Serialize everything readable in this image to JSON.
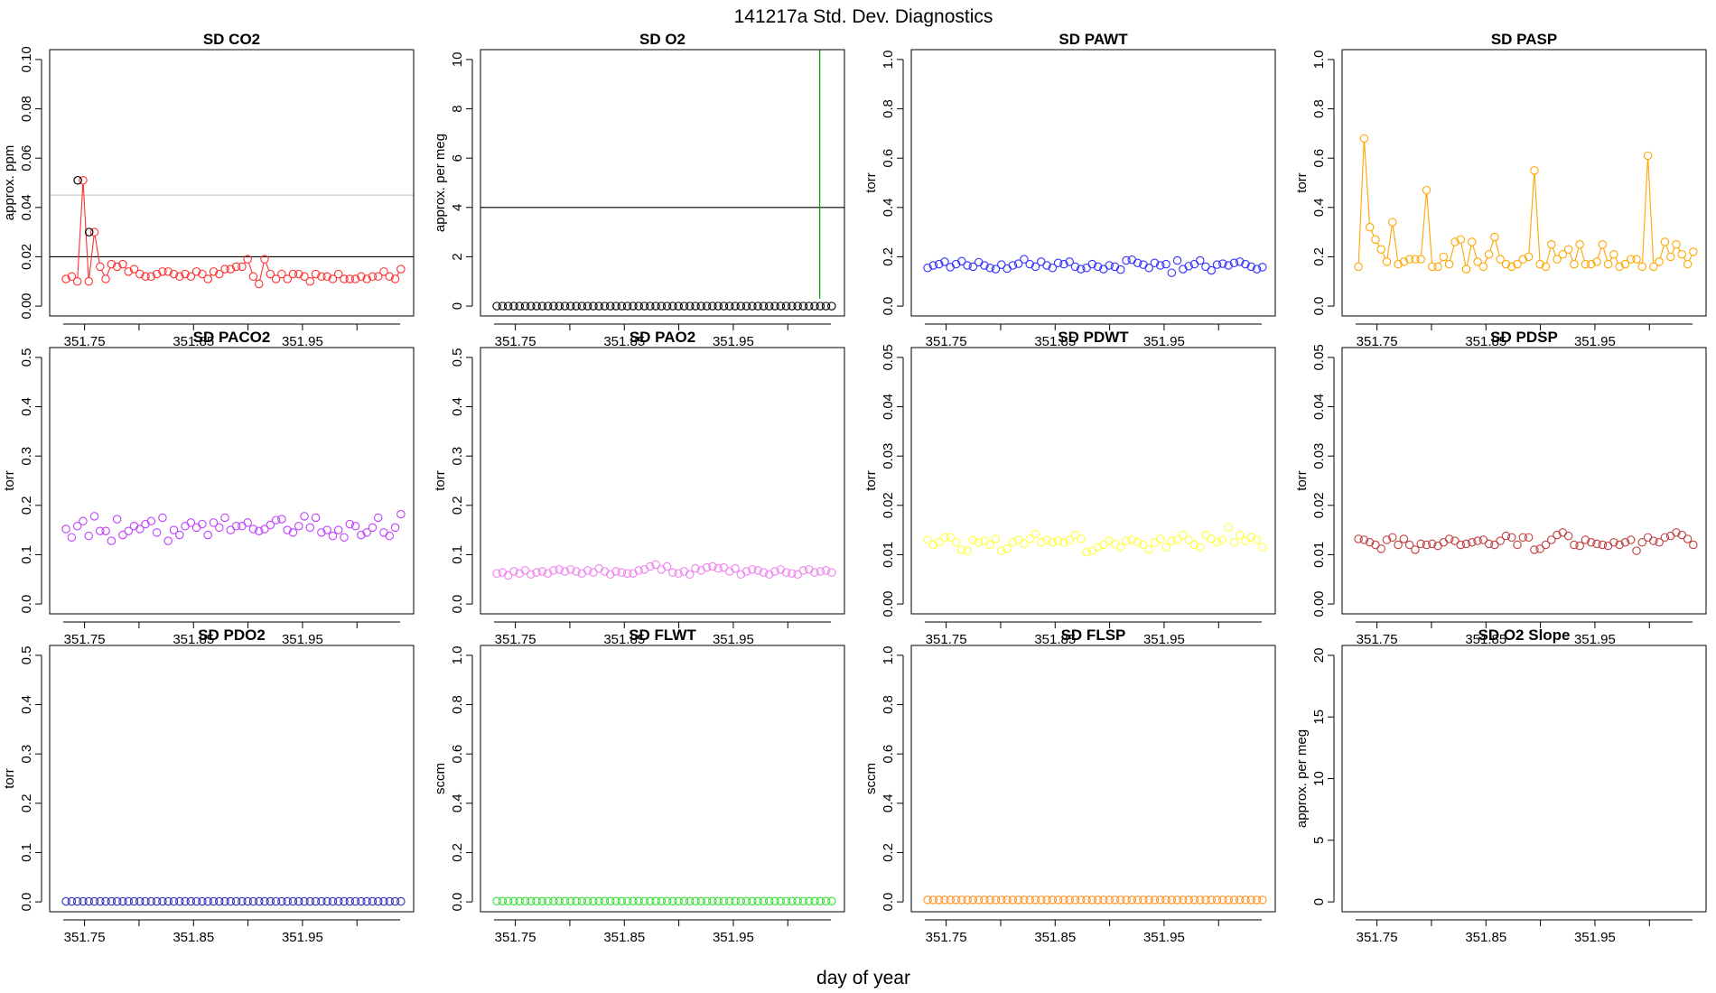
{
  "figure": {
    "title": "141217a   Std. Dev. Diagnostics",
    "xlabel": "day of year"
  },
  "chart_data": [
    {
      "type": "scatter",
      "title": "SD CO2",
      "ylabel": "approx. ppm",
      "color": "#ff3030",
      "xlim": [
        351.718,
        352.052
      ],
      "ylim": [
        0,
        0.1
      ],
      "yticks": [
        0,
        0.02,
        0.04,
        0.06,
        0.08,
        0.1
      ],
      "yticklabels": [
        "0.00",
        "0.02",
        "0.04",
        "0.06",
        "0.08",
        "0.10"
      ],
      "xticks": [
        351.75,
        351.85,
        351.95
      ],
      "xticklabels": [
        "351.75",
        "351.85",
        "351.95"
      ],
      "hlines": [
        {
          "y": 0.045,
          "color": "#cccccc"
        },
        {
          "y": 0.02,
          "color": "#000000"
        }
      ],
      "highlight": [
        {
          "x": 351.7438,
          "y": 0.051
        },
        {
          "x": 351.7542,
          "y": 0.03
        }
      ],
      "connect": true,
      "x0": 351.733,
      "dx": 0.005208,
      "values": [
        0.011,
        0.012,
        0.01,
        0.051,
        0.01,
        0.03,
        0.016,
        0.011,
        0.017,
        0.016,
        0.017,
        0.014,
        0.015,
        0.013,
        0.012,
        0.012,
        0.013,
        0.014,
        0.014,
        0.013,
        0.012,
        0.013,
        0.012,
        0.014,
        0.013,
        0.011,
        0.014,
        0.013,
        0.015,
        0.015,
        0.016,
        0.016,
        0.019,
        0.012,
        0.009,
        0.019,
        0.013,
        0.011,
        0.013,
        0.011,
        0.013,
        0.013,
        0.012,
        0.01,
        0.013,
        0.012,
        0.012,
        0.011,
        0.013,
        0.011,
        0.011,
        0.011,
        0.012,
        0.011,
        0.012,
        0.012,
        0.014,
        0.012,
        0.011,
        0.015
      ]
    },
    {
      "type": "scatter",
      "title": "SD O2",
      "ylabel": "approx. per meg",
      "color": "#000000",
      "xlim": [
        351.718,
        352.052
      ],
      "ylim": [
        0,
        10
      ],
      "yticks": [
        0,
        2,
        4,
        6,
        8,
        10
      ],
      "yticklabels": [
        "0",
        "2",
        "4",
        "6",
        "8",
        "10"
      ],
      "xticks": [
        351.75,
        351.85,
        351.95
      ],
      "xticklabels": [
        "351.75",
        "351.85",
        "351.95"
      ],
      "hlines": [
        {
          "y": 4,
          "color": "#000000"
        }
      ],
      "vlines": [
        {
          "x": 352.0293,
          "from": 0.3,
          "to": 10.4,
          "color": "#00a000"
        }
      ],
      "x0": 351.733,
      "dx": 0.005208,
      "values": [
        0,
        0,
        0,
        0,
        0,
        0,
        0,
        0,
        0,
        0,
        0,
        0,
        0,
        0,
        0,
        0,
        0,
        0,
        0,
        0,
        0,
        0,
        0,
        0,
        0,
        0,
        0,
        0,
        0,
        0,
        0,
        0,
        0,
        0,
        0,
        0,
        0,
        0,
        0,
        0,
        0,
        0,
        0,
        0,
        0,
        0,
        0,
        0,
        0,
        0,
        0,
        0,
        0,
        0,
        0,
        0,
        0,
        0,
        0,
        0
      ]
    },
    {
      "type": "scatter",
      "title": "SD PAWT",
      "ylabel": "torr",
      "color": "#3030ff",
      "xlim": [
        351.718,
        352.052
      ],
      "ylim": [
        0,
        1
      ],
      "yticks": [
        0,
        0.2,
        0.4,
        0.6,
        0.8,
        1
      ],
      "yticklabels": [
        "0.0",
        "0.2",
        "0.4",
        "0.6",
        "0.8",
        "1.0"
      ],
      "xticks": [
        351.75,
        351.85,
        351.95
      ],
      "xticklabels": [
        "351.75",
        "351.85",
        "351.95"
      ],
      "x0": 351.733,
      "dx": 0.005208,
      "values": [
        0.155,
        0.165,
        0.17,
        0.18,
        0.158,
        0.17,
        0.182,
        0.165,
        0.16,
        0.178,
        0.165,
        0.155,
        0.15,
        0.168,
        0.152,
        0.165,
        0.172,
        0.19,
        0.17,
        0.16,
        0.18,
        0.165,
        0.155,
        0.175,
        0.17,
        0.18,
        0.16,
        0.15,
        0.155,
        0.17,
        0.16,
        0.15,
        0.165,
        0.16,
        0.148,
        0.185,
        0.188,
        0.175,
        0.168,
        0.155,
        0.175,
        0.165,
        0.17,
        0.135,
        0.185,
        0.15,
        0.162,
        0.17,
        0.185,
        0.16,
        0.145,
        0.168,
        0.172,
        0.165,
        0.175,
        0.18,
        0.17,
        0.16,
        0.15,
        0.158
      ]
    },
    {
      "type": "scatter",
      "title": "SD PASP",
      "ylabel": "torr",
      "color": "#ffa500",
      "xlim": [
        351.718,
        352.052
      ],
      "ylim": [
        0,
        1
      ],
      "yticks": [
        0,
        0.2,
        0.4,
        0.6,
        0.8,
        1
      ],
      "yticklabels": [
        "0.0",
        "0.2",
        "0.4",
        "0.6",
        "0.8",
        "1.0"
      ],
      "xticks": [
        351.75,
        351.85,
        351.95
      ],
      "xticklabels": [
        "351.75",
        "351.85",
        "351.95"
      ],
      "connect": true,
      "x0": 351.733,
      "dx": 0.005208,
      "values": [
        0.16,
        0.68,
        0.32,
        0.27,
        0.23,
        0.18,
        0.34,
        0.17,
        0.18,
        0.19,
        0.19,
        0.19,
        0.47,
        0.16,
        0.16,
        0.2,
        0.17,
        0.26,
        0.27,
        0.15,
        0.26,
        0.18,
        0.16,
        0.21,
        0.28,
        0.19,
        0.17,
        0.16,
        0.17,
        0.19,
        0.2,
        0.55,
        0.17,
        0.16,
        0.25,
        0.19,
        0.21,
        0.23,
        0.17,
        0.25,
        0.17,
        0.17,
        0.18,
        0.25,
        0.17,
        0.21,
        0.16,
        0.17,
        0.19,
        0.19,
        0.16,
        0.61,
        0.16,
        0.18,
        0.26,
        0.2,
        0.25,
        0.21,
        0.17,
        0.22
      ]
    },
    {
      "type": "scatter",
      "title": "SD PACO2",
      "ylabel": "torr",
      "color": "#c040ff",
      "xlim": [
        351.718,
        352.052
      ],
      "ylim": [
        0,
        0.5
      ],
      "yticks": [
        0,
        0.1,
        0.2,
        0.3,
        0.4,
        0.5
      ],
      "yticklabels": [
        "0.0",
        "0.1",
        "0.2",
        "0.3",
        "0.4",
        "0.5"
      ],
      "xticks": [
        351.75,
        351.85,
        351.95
      ],
      "xticklabels": [
        "351.75",
        "351.85",
        "351.95"
      ],
      "x0": 351.733,
      "dx": 0.005208,
      "values": [
        0.152,
        0.135,
        0.158,
        0.168,
        0.138,
        0.178,
        0.148,
        0.148,
        0.128,
        0.172,
        0.14,
        0.148,
        0.158,
        0.152,
        0.162,
        0.168,
        0.145,
        0.175,
        0.128,
        0.15,
        0.14,
        0.158,
        0.165,
        0.155,
        0.162,
        0.14,
        0.165,
        0.155,
        0.175,
        0.15,
        0.158,
        0.158,
        0.165,
        0.152,
        0.148,
        0.152,
        0.16,
        0.17,
        0.172,
        0.15,
        0.145,
        0.158,
        0.178,
        0.155,
        0.175,
        0.145,
        0.15,
        0.138,
        0.15,
        0.135,
        0.162,
        0.158,
        0.14,
        0.145,
        0.155,
        0.175,
        0.145,
        0.138,
        0.155,
        0.182
      ]
    },
    {
      "type": "scatter",
      "title": "SD PAO2",
      "ylabel": "torr",
      "color": "#f080f0",
      "xlim": [
        351.718,
        352.052
      ],
      "ylim": [
        0,
        0.5
      ],
      "yticks": [
        0,
        0.1,
        0.2,
        0.3,
        0.4,
        0.5
      ],
      "yticklabels": [
        "0.0",
        "0.1",
        "0.2",
        "0.3",
        "0.4",
        "0.5"
      ],
      "xticks": [
        351.75,
        351.85,
        351.95
      ],
      "xticklabels": [
        "351.75",
        "351.85",
        "351.95"
      ],
      "x0": 351.733,
      "dx": 0.005208,
      "values": [
        0.062,
        0.064,
        0.058,
        0.066,
        0.062,
        0.068,
        0.06,
        0.064,
        0.066,
        0.062,
        0.068,
        0.07,
        0.066,
        0.07,
        0.066,
        0.062,
        0.068,
        0.064,
        0.072,
        0.066,
        0.06,
        0.066,
        0.064,
        0.062,
        0.062,
        0.068,
        0.07,
        0.076,
        0.08,
        0.07,
        0.076,
        0.064,
        0.062,
        0.066,
        0.06,
        0.072,
        0.068,
        0.074,
        0.076,
        0.072,
        0.074,
        0.066,
        0.072,
        0.06,
        0.066,
        0.07,
        0.068,
        0.064,
        0.06,
        0.066,
        0.07,
        0.064,
        0.062,
        0.06,
        0.068,
        0.07,
        0.064,
        0.066,
        0.068,
        0.064
      ]
    },
    {
      "type": "scatter",
      "title": "SD PDWT",
      "ylabel": "torr",
      "color": "#ffff40",
      "xlim": [
        351.718,
        352.052
      ],
      "ylim": [
        0,
        0.05
      ],
      "yticks": [
        0,
        0.01,
        0.02,
        0.03,
        0.04,
        0.05
      ],
      "yticklabels": [
        "0.00",
        "0.01",
        "0.02",
        "0.03",
        "0.04",
        "0.05"
      ],
      "xticks": [
        351.75,
        351.85,
        351.95
      ],
      "xticklabels": [
        "351.75",
        "351.85",
        "351.95"
      ],
      "x0": 351.733,
      "dx": 0.005208,
      "values": [
        0.013,
        0.012,
        0.0125,
        0.0135,
        0.0135,
        0.0125,
        0.011,
        0.0108,
        0.013,
        0.0125,
        0.0128,
        0.012,
        0.0132,
        0.0108,
        0.0112,
        0.0125,
        0.013,
        0.0122,
        0.0132,
        0.0142,
        0.0125,
        0.013,
        0.0125,
        0.0128,
        0.0125,
        0.013,
        0.014,
        0.0132,
        0.0105,
        0.0108,
        0.0115,
        0.012,
        0.0128,
        0.0122,
        0.0115,
        0.0128,
        0.013,
        0.0125,
        0.012,
        0.011,
        0.0125,
        0.0132,
        0.0115,
        0.0128,
        0.013,
        0.014,
        0.013,
        0.012,
        0.0115,
        0.014,
        0.0132,
        0.0125,
        0.013,
        0.0155,
        0.0125,
        0.014,
        0.0128,
        0.0135,
        0.013,
        0.0115
      ]
    },
    {
      "type": "scatter",
      "title": "SD PDSP",
      "ylabel": "torr",
      "color": "#c04040",
      "xlim": [
        351.718,
        352.052
      ],
      "ylim": [
        0,
        0.05
      ],
      "yticks": [
        0,
        0.01,
        0.02,
        0.03,
        0.04,
        0.05
      ],
      "yticklabels": [
        "0.00",
        "0.01",
        "0.02",
        "0.03",
        "0.04",
        "0.05"
      ],
      "xticks": [
        351.75,
        351.85,
        351.95
      ],
      "xticklabels": [
        "351.75",
        "351.85",
        "351.95"
      ],
      "x0": 351.733,
      "dx": 0.005208,
      "values": [
        0.0132,
        0.013,
        0.0125,
        0.012,
        0.0112,
        0.013,
        0.0135,
        0.012,
        0.0132,
        0.012,
        0.011,
        0.0122,
        0.012,
        0.0122,
        0.0118,
        0.0125,
        0.0132,
        0.0128,
        0.012,
        0.0122,
        0.0125,
        0.0128,
        0.013,
        0.0122,
        0.012,
        0.0128,
        0.0138,
        0.0135,
        0.012,
        0.0135,
        0.0135,
        0.011,
        0.0112,
        0.012,
        0.013,
        0.014,
        0.0145,
        0.0138,
        0.012,
        0.0118,
        0.013,
        0.0125,
        0.0122,
        0.012,
        0.0118,
        0.0125,
        0.012,
        0.0125,
        0.013,
        0.0108,
        0.0125,
        0.0135,
        0.0128,
        0.0125,
        0.0135,
        0.0138,
        0.0145,
        0.014,
        0.0132,
        0.012
      ]
    },
    {
      "type": "scatter",
      "title": "SD PDO2",
      "ylabel": "torr",
      "color": "#3030c0",
      "xlim": [
        351.718,
        352.052
      ],
      "ylim": [
        0,
        0.5
      ],
      "yticks": [
        0,
        0.1,
        0.2,
        0.3,
        0.4,
        0.5
      ],
      "yticklabels": [
        "0.0",
        "0.1",
        "0.2",
        "0.3",
        "0.4",
        "0.5"
      ],
      "xticks": [
        351.75,
        351.85,
        351.95
      ],
      "xticklabels": [
        "351.75",
        "351.85",
        "351.95"
      ],
      "x0": 351.733,
      "dx": 0.005208,
      "values": [
        0.001,
        0.001,
        0.001,
        0.001,
        0.001,
        0.001,
        0.001,
        0.001,
        0.001,
        0.001,
        0.001,
        0.001,
        0.001,
        0.001,
        0.001,
        0.001,
        0.001,
        0.001,
        0.001,
        0.001,
        0.001,
        0.001,
        0.001,
        0.001,
        0.001,
        0.001,
        0.001,
        0.001,
        0.001,
        0.001,
        0.001,
        0.001,
        0.001,
        0.001,
        0.001,
        0.001,
        0.001,
        0.001,
        0.001,
        0.001,
        0.001,
        0.001,
        0.001,
        0.001,
        0.001,
        0.001,
        0.001,
        0.001,
        0.001,
        0.001,
        0.001,
        0.001,
        0.001,
        0.001,
        0.001,
        0.001,
        0.001,
        0.001,
        0.001,
        0.001
      ]
    },
    {
      "type": "scatter",
      "title": "SD FLWT",
      "ylabel": "sccm",
      "color": "#30e030",
      "xlim": [
        351.718,
        352.052
      ],
      "ylim": [
        0,
        1
      ],
      "yticks": [
        0,
        0.2,
        0.4,
        0.6,
        0.8,
        1
      ],
      "yticklabels": [
        "0.0",
        "0.2",
        "0.4",
        "0.6",
        "0.8",
        "1.0"
      ],
      "xticks": [
        351.75,
        351.85,
        351.95
      ],
      "xticklabels": [
        "351.75",
        "351.85",
        "351.95"
      ],
      "x0": 351.733,
      "dx": 0.005208,
      "values": [
        0.003,
        0.003,
        0.003,
        0.003,
        0.003,
        0.003,
        0.003,
        0.003,
        0.003,
        0.003,
        0.003,
        0.003,
        0.003,
        0.003,
        0.003,
        0.003,
        0.003,
        0.003,
        0.003,
        0.003,
        0.003,
        0.003,
        0.003,
        0.003,
        0.003,
        0.003,
        0.003,
        0.003,
        0.003,
        0.003,
        0.003,
        0.003,
        0.003,
        0.003,
        0.003,
        0.003,
        0.003,
        0.003,
        0.003,
        0.003,
        0.003,
        0.003,
        0.003,
        0.003,
        0.003,
        0.003,
        0.003,
        0.003,
        0.003,
        0.003,
        0.003,
        0.003,
        0.003,
        0.003,
        0.003,
        0.003,
        0.003,
        0.003,
        0.003,
        0.003
      ]
    },
    {
      "type": "scatter",
      "title": "SD FLSP",
      "ylabel": "sccm",
      "color": "#ff9020",
      "xlim": [
        351.718,
        352.052
      ],
      "ylim": [
        0,
        1
      ],
      "yticks": [
        0,
        0.2,
        0.4,
        0.6,
        0.8,
        1
      ],
      "yticklabels": [
        "0.0",
        "0.2",
        "0.4",
        "0.6",
        "0.8",
        "1.0"
      ],
      "xticks": [
        351.75,
        351.85,
        351.95
      ],
      "xticklabels": [
        "351.75",
        "351.85",
        "351.95"
      ],
      "x0": 351.733,
      "dx": 0.005208,
      "values": [
        0.008,
        0.008,
        0.008,
        0.008,
        0.008,
        0.008,
        0.008,
        0.008,
        0.008,
        0.008,
        0.008,
        0.008,
        0.008,
        0.008,
        0.008,
        0.008,
        0.008,
        0.008,
        0.008,
        0.008,
        0.008,
        0.008,
        0.008,
        0.008,
        0.008,
        0.008,
        0.008,
        0.008,
        0.008,
        0.008,
        0.008,
        0.008,
        0.008,
        0.008,
        0.008,
        0.008,
        0.008,
        0.008,
        0.008,
        0.008,
        0.008,
        0.008,
        0.008,
        0.008,
        0.008,
        0.008,
        0.008,
        0.008,
        0.008,
        0.008,
        0.008,
        0.008,
        0.008,
        0.008,
        0.008,
        0.008,
        0.008,
        0.008,
        0.008,
        0.008
      ]
    },
    {
      "type": "scatter",
      "title": "SD O2 Slope",
      "ylabel": "approx. per meg",
      "color": "#000000",
      "xlim": [
        351.718,
        352.052
      ],
      "ylim": [
        0,
        20
      ],
      "yticks": [
        0,
        5,
        10,
        15,
        20
      ],
      "yticklabels": [
        "0",
        "5",
        "10",
        "15",
        "20"
      ],
      "xticks": [
        351.75,
        351.85,
        351.95
      ],
      "xticklabels": [
        "351.75",
        "351.85",
        "351.95"
      ],
      "x0": 351.733,
      "dx": 0.005208,
      "values": []
    }
  ]
}
